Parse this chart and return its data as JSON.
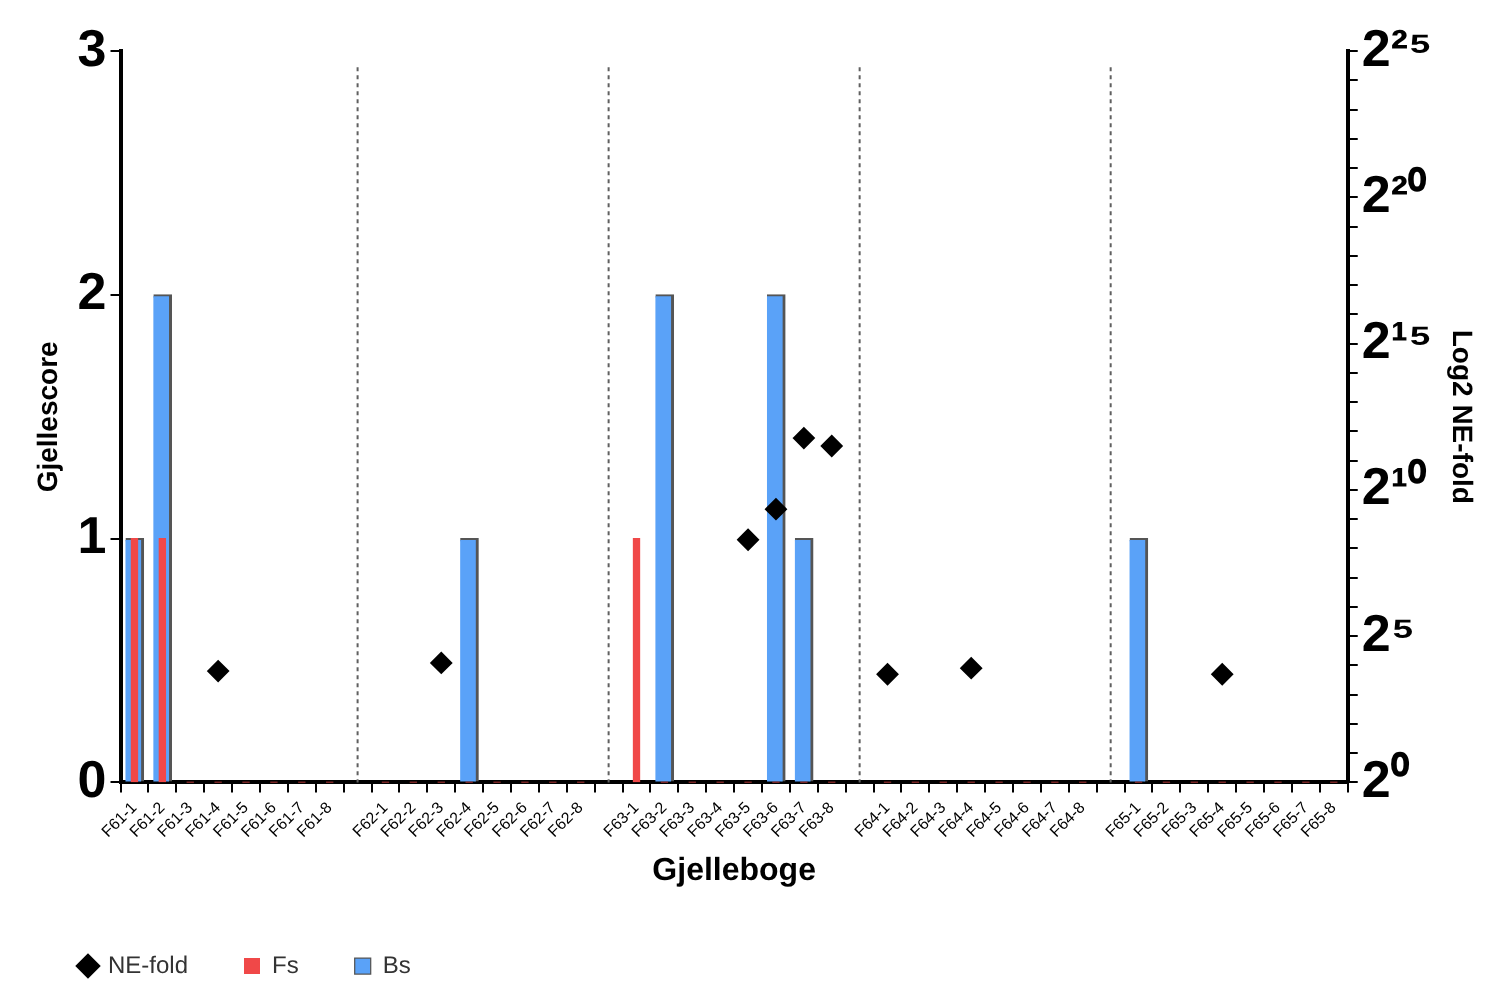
{
  "chart_data": {
    "type": "bar",
    "xlabel": "Gjelleboge",
    "ylabel": "Gjellescore",
    "y2label": "Log2 NE-fold",
    "categories": [
      "F61-1",
      "F61-2",
      "F61-3",
      "F61-4",
      "F61-5",
      "F61-6",
      "F61-7",
      "F61-8",
      null,
      "F62-1",
      "F62-2",
      "F62-3",
      "F62-4",
      "F62-5",
      "F62-6",
      "F62-7",
      "F62-8",
      null,
      "F63-1",
      "F63-2",
      "F63-3",
      "F63-4",
      "F63-5",
      "F63-6",
      "F63-7",
      "F63-8",
      null,
      "F64-1",
      "F64-2",
      "F64-3",
      "F64-4",
      "F64-5",
      "F64-6",
      "F64-7",
      "F64-8",
      null,
      "F65-1",
      "F65-2",
      "F65-3",
      "F65-4",
      "F65-5",
      "F65-6",
      "F65-7",
      "F65-8"
    ],
    "series": [
      {
        "name": "NE-fold",
        "type": "scatter",
        "axis": "y2",
        "color": "#000000",
        "marker": "diamond",
        "values": [
          null,
          null,
          null,
          14,
          null,
          null,
          null,
          null,
          null,
          null,
          null,
          17,
          null,
          null,
          null,
          null,
          null,
          null,
          null,
          null,
          null,
          null,
          315,
          650,
          3500,
          2900,
          null,
          13,
          null,
          null,
          15,
          null,
          null,
          null,
          null,
          null,
          null,
          null,
          null,
          13,
          null,
          null,
          null,
          null
        ]
      },
      {
        "name": "Fs",
        "color": "#f04848",
        "values": [
          1,
          1,
          0,
          0,
          0,
          0,
          0,
          0,
          null,
          0,
          0,
          0,
          0,
          0,
          0,
          0,
          0,
          null,
          1,
          0,
          0,
          0,
          0,
          0,
          0,
          0,
          null,
          0,
          0,
          0,
          0,
          0,
          0,
          0,
          0,
          null,
          0,
          0,
          0,
          0,
          0,
          0,
          0,
          0
        ]
      },
      {
        "name": "Bs",
        "color": "#5aa2f8",
        "values": [
          1,
          2,
          0,
          0,
          0,
          0,
          0,
          0,
          null,
          0,
          0,
          0,
          1,
          0,
          0,
          0,
          0,
          null,
          0,
          2,
          0,
          0,
          0,
          2,
          1,
          0,
          null,
          0,
          0,
          0,
          0,
          0,
          0,
          0,
          0,
          null,
          1,
          0,
          0,
          0,
          0,
          0,
          0,
          0
        ]
      }
    ],
    "ylim": [
      0,
      3
    ],
    "yticks": [
      0,
      1,
      2,
      3
    ],
    "log": "y2",
    "y2lim": [
      1,
      33554432
    ],
    "y2ticks": [
      {
        "value": 1,
        "label": "2⁰"
      },
      {
        "value": 2,
        "label": null
      },
      {
        "value": 4,
        "label": null
      },
      {
        "value": 8,
        "label": null
      },
      {
        "value": 16,
        "label": null
      },
      {
        "value": 32,
        "label": "2⁵"
      },
      {
        "value": 64,
        "label": null
      },
      {
        "value": 128,
        "label": null
      },
      {
        "value": 256,
        "label": null
      },
      {
        "value": 512,
        "label": null
      },
      {
        "value": 1024,
        "label": "2¹⁰"
      },
      {
        "value": 2048,
        "label": null
      },
      {
        "value": 4096,
        "label": null
      },
      {
        "value": 8192,
        "label": null
      },
      {
        "value": 16384,
        "label": null
      },
      {
        "value": 32768,
        "label": "2¹⁵"
      },
      {
        "value": 65536,
        "label": null
      },
      {
        "value": 131072,
        "label": null
      },
      {
        "value": 262144,
        "label": null
      },
      {
        "value": 524288,
        "label": null
      },
      {
        "value": 1048576,
        "label": "2²⁰"
      },
      {
        "value": 2097152,
        "label": null
      },
      {
        "value": 4194304,
        "label": null
      },
      {
        "value": 8388608,
        "label": null
      },
      {
        "value": 16777216,
        "label": null
      },
      {
        "value": 33554432,
        "label": "2²⁵"
      }
    ],
    "grid": "x",
    "legend": "bottom left"
  }
}
